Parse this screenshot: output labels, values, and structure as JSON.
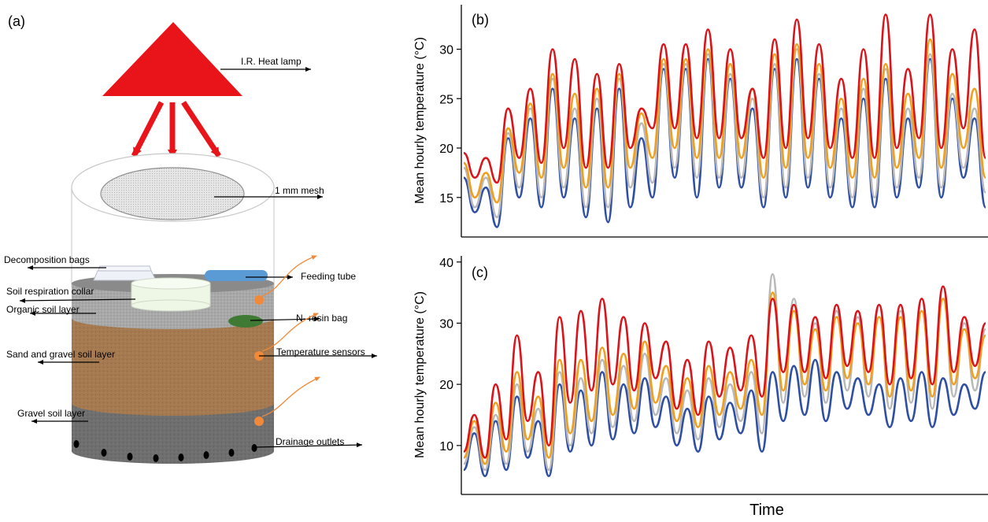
{
  "panel_a": {
    "label": "(a)",
    "annotations": {
      "lamp": "I.R. Heat lamp",
      "mesh": "1 mm mesh",
      "decomposition": "Decomposition bags",
      "feeding": "Feeding tube",
      "respiration": "Soil respiration collar",
      "organic": "Organic soil  layer",
      "resin": "N- resin bag",
      "sand": "Sand and gravel soil layer",
      "sensors": "Temperature sensors",
      "gravel": "Gravel soil layer",
      "drainage": "Drainage outlets"
    },
    "colors": {
      "lamp": "#e8141a",
      "organic_layer": "#a3a3a3",
      "sand_layer": "#a67a50",
      "gravel_layer": "#6f6f6f",
      "feeding_tube": "#5b9bd5",
      "resin_bag": "#3f7a35",
      "sensor": "#f08a3a",
      "collar": "#eef7e6"
    }
  },
  "chart_data": [
    {
      "panel": "(b)",
      "type": "line",
      "xlabel": "",
      "ylabel": "Mean hourly temperature (°C)",
      "ylim": [
        11,
        34.5
      ],
      "yticks": [
        15,
        20,
        25,
        30
      ],
      "series_colors": [
        "#2e4fa3",
        "#b9b9b9",
        "#f0a01e",
        "#d9141a"
      ],
      "series": [
        {
          "values": [
            17,
            13.5,
            16,
            12,
            21,
            15,
            23,
            14,
            26,
            15,
            23,
            13,
            24,
            12.5,
            26,
            14,
            21,
            15,
            28,
            17,
            28,
            15,
            29,
            16,
            27,
            16,
            24,
            14,
            28,
            15,
            29,
            16,
            27,
            15,
            23,
            14,
            25,
            14,
            27,
            15,
            23,
            16,
            29,
            15,
            25,
            17,
            23,
            14
          ]
        },
        {
          "values": [
            18,
            14,
            17,
            13,
            21.5,
            16,
            24,
            15,
            27,
            16,
            24,
            14,
            25,
            14,
            27,
            16,
            22.5,
            16.5,
            28.5,
            18,
            28.5,
            17,
            29.5,
            17,
            27.5,
            17,
            25,
            15,
            28.5,
            16,
            30,
            17,
            27.5,
            16,
            24,
            15,
            26,
            15,
            28,
            16,
            24,
            17,
            29.5,
            16,
            25.5,
            18,
            24,
            15.5
          ]
        },
        {
          "values": [
            18.5,
            15,
            17.5,
            14.5,
            22,
            17.5,
            24.5,
            17,
            27.5,
            18,
            25.5,
            16,
            26,
            16,
            27.5,
            18,
            23.5,
            19,
            29,
            20,
            29,
            19,
            30,
            19,
            28.5,
            19,
            26,
            17,
            29.5,
            18,
            30.5,
            19,
            28.5,
            18,
            25,
            17,
            27,
            17,
            28.5,
            18,
            25.5,
            19,
            31,
            18,
            27.5,
            20,
            26,
            17
          ]
        },
        {
          "values": [
            19.5,
            17,
            19,
            16.5,
            24,
            19,
            26,
            18.5,
            30,
            20,
            29,
            18,
            27.5,
            18,
            28.5,
            20,
            24,
            22,
            30.5,
            22,
            30.5,
            21,
            32,
            21,
            30,
            21,
            26,
            19,
            31,
            20,
            33,
            21,
            30.5,
            20,
            27,
            19,
            30,
            19,
            33.5,
            20,
            28,
            21,
            33.5,
            20,
            30,
            22,
            32,
            19
          ]
        }
      ]
    },
    {
      "panel": "(c)",
      "type": "line",
      "xlabel": "Time",
      "ylabel": "Mean hourly temperature (°C)",
      "ylim": [
        2,
        41
      ],
      "yticks": [
        10,
        20,
        30,
        40
      ],
      "series_colors": [
        "#2e4fa3",
        "#b9b9b9",
        "#f0a01e",
        "#d9141a"
      ],
      "series": [
        {
          "values": [
            6,
            12,
            5,
            14,
            6,
            18,
            8,
            14,
            5,
            20,
            9,
            19,
            10,
            22,
            11,
            20,
            12,
            21,
            13,
            18,
            10,
            16,
            9,
            18,
            11,
            17,
            12,
            19,
            9,
            22,
            14,
            23,
            15,
            24,
            14,
            22,
            16,
            21,
            15,
            20,
            13,
            21,
            14,
            22,
            13,
            21,
            15,
            20,
            16,
            22
          ]
        },
        {
          "values": [
            7,
            13,
            6,
            15,
            7,
            20,
            9,
            16,
            6,
            22,
            10,
            21,
            12,
            24,
            13,
            23,
            14,
            25,
            15,
            21,
            12,
            19,
            11,
            21,
            13,
            20,
            14,
            22,
            12,
            38,
            17,
            34,
            18,
            30,
            17,
            32,
            19,
            31,
            18,
            33,
            16,
            32,
            17,
            34,
            16,
            36,
            18,
            30,
            19,
            29
          ]
        },
        {
          "values": [
            8,
            14,
            7,
            17,
            9,
            22,
            11,
            18,
            8,
            24,
            12,
            24,
            14,
            26,
            15,
            25,
            16,
            27,
            17,
            23,
            14,
            21,
            13,
            23,
            15,
            22,
            16,
            24,
            15,
            35,
            19,
            32,
            20,
            29,
            19,
            31,
            21,
            30,
            20,
            31,
            18,
            31,
            19,
            32,
            18,
            34,
            20,
            29,
            21,
            28
          ]
        },
        {
          "values": [
            9,
            15,
            8,
            20,
            11,
            28,
            14,
            22,
            10,
            31,
            17,
            32,
            19,
            34,
            20,
            31,
            19,
            30,
            21,
            27,
            16,
            24,
            15,
            27,
            18,
            26,
            19,
            28,
            18,
            34,
            22,
            33,
            22,
            31,
            21,
            33,
            23,
            32,
            22,
            33,
            20,
            33,
            21,
            34,
            20,
            36,
            22,
            31,
            23,
            30
          ]
        }
      ]
    }
  ]
}
